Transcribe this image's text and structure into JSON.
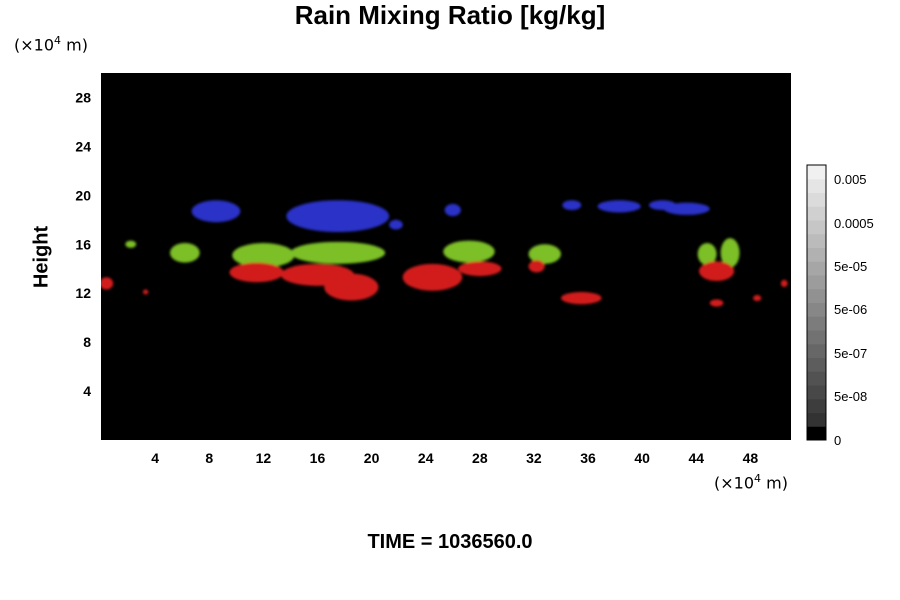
{
  "chart_data": {
    "type": "heatmap",
    "title": "Rain Mixing Ratio [kg/kg]",
    "ylabel": "Height",
    "xlabel": "",
    "x_unit_prefix": "(×10",
    "x_unit_exp": "4",
    "x_unit_suffix": " m)",
    "y_unit_prefix": "(×10",
    "y_unit_exp": "4",
    "y_unit_suffix": " m)",
    "xlim": [
      0,
      51
    ],
    "ylim": [
      0,
      30
    ],
    "xticks": [
      4,
      8,
      12,
      16,
      20,
      24,
      28,
      32,
      36,
      40,
      44,
      48
    ],
    "yticks": [
      4,
      8,
      12,
      16,
      20,
      24,
      28
    ],
    "background_color": "#000000",
    "colorbar": {
      "labels": [
        "0.005",
        "0.0005",
        "5e-05",
        "5e-06",
        "5e-07",
        "5e-08",
        "0"
      ],
      "levels": 20
    },
    "features": [
      {
        "color": "#2a32c8",
        "cx": 8.5,
        "cy": 18.7,
        "rx": 1.8,
        "ry": 0.9
      },
      {
        "color": "#2a32c8",
        "cx": 17.5,
        "cy": 18.3,
        "rx": 3.8,
        "ry": 1.3
      },
      {
        "color": "#2a32c8",
        "cx": 21.8,
        "cy": 17.6,
        "rx": 0.5,
        "ry": 0.4
      },
      {
        "color": "#2a32c8",
        "cx": 26.0,
        "cy": 18.8,
        "rx": 0.6,
        "ry": 0.5
      },
      {
        "color": "#2a32c8",
        "cx": 34.8,
        "cy": 19.2,
        "rx": 0.7,
        "ry": 0.4
      },
      {
        "color": "#2a32c8",
        "cx": 38.3,
        "cy": 19.1,
        "rx": 1.6,
        "ry": 0.5
      },
      {
        "color": "#2a32c8",
        "cx": 41.5,
        "cy": 19.2,
        "rx": 1.0,
        "ry": 0.4
      },
      {
        "color": "#2a32c8",
        "cx": 43.3,
        "cy": 18.9,
        "rx": 1.7,
        "ry": 0.5
      },
      {
        "color": "#7cbf28",
        "cx": 6.2,
        "cy": 15.3,
        "rx": 1.1,
        "ry": 0.8
      },
      {
        "color": "#7cbf28",
        "cx": 12.0,
        "cy": 15.1,
        "rx": 2.3,
        "ry": 1.0
      },
      {
        "color": "#7cbf28",
        "cx": 17.5,
        "cy": 15.3,
        "rx": 3.5,
        "ry": 0.9
      },
      {
        "color": "#7cbf28",
        "cx": 27.2,
        "cy": 15.4,
        "rx": 1.9,
        "ry": 0.9
      },
      {
        "color": "#7cbf28",
        "cx": 32.8,
        "cy": 15.2,
        "rx": 1.2,
        "ry": 0.8
      },
      {
        "color": "#7cbf28",
        "cx": 44.8,
        "cy": 15.2,
        "rx": 0.7,
        "ry": 0.9
      },
      {
        "color": "#7cbf28",
        "cx": 46.5,
        "cy": 15.3,
        "rx": 0.7,
        "ry": 1.2
      },
      {
        "color": "#7cbf28",
        "cx": 2.2,
        "cy": 16.0,
        "rx": 0.4,
        "ry": 0.3
      },
      {
        "color": "#d21e1e",
        "cx": 0.4,
        "cy": 12.8,
        "rx": 0.5,
        "ry": 0.5
      },
      {
        "color": "#d21e1e",
        "cx": 3.3,
        "cy": 12.1,
        "rx": 0.2,
        "ry": 0.2
      },
      {
        "color": "#d21e1e",
        "cx": 11.5,
        "cy": 13.7,
        "rx": 2.0,
        "ry": 0.8
      },
      {
        "color": "#d21e1e",
        "cx": 16.0,
        "cy": 13.5,
        "rx": 2.7,
        "ry": 0.9
      },
      {
        "color": "#d21e1e",
        "cx": 18.5,
        "cy": 12.5,
        "rx": 2.0,
        "ry": 1.1
      },
      {
        "color": "#d21e1e",
        "cx": 24.5,
        "cy": 13.3,
        "rx": 2.2,
        "ry": 1.1
      },
      {
        "color": "#d21e1e",
        "cx": 28.0,
        "cy": 14.0,
        "rx": 1.6,
        "ry": 0.6
      },
      {
        "color": "#d21e1e",
        "cx": 32.2,
        "cy": 14.2,
        "rx": 0.6,
        "ry": 0.5
      },
      {
        "color": "#d21e1e",
        "cx": 35.5,
        "cy": 11.6,
        "rx": 1.5,
        "ry": 0.5
      },
      {
        "color": "#d21e1e",
        "cx": 45.5,
        "cy": 13.8,
        "rx": 1.3,
        "ry": 0.8
      },
      {
        "color": "#d21e1e",
        "cx": 45.5,
        "cy": 11.2,
        "rx": 0.5,
        "ry": 0.3
      },
      {
        "color": "#d21e1e",
        "cx": 48.5,
        "cy": 11.6,
        "rx": 0.3,
        "ry": 0.25
      },
      {
        "color": "#d21e1e",
        "cx": 50.5,
        "cy": 12.8,
        "rx": 0.25,
        "ry": 0.3
      }
    ]
  },
  "footer": {
    "time_label": "TIME = 1036560.0"
  }
}
